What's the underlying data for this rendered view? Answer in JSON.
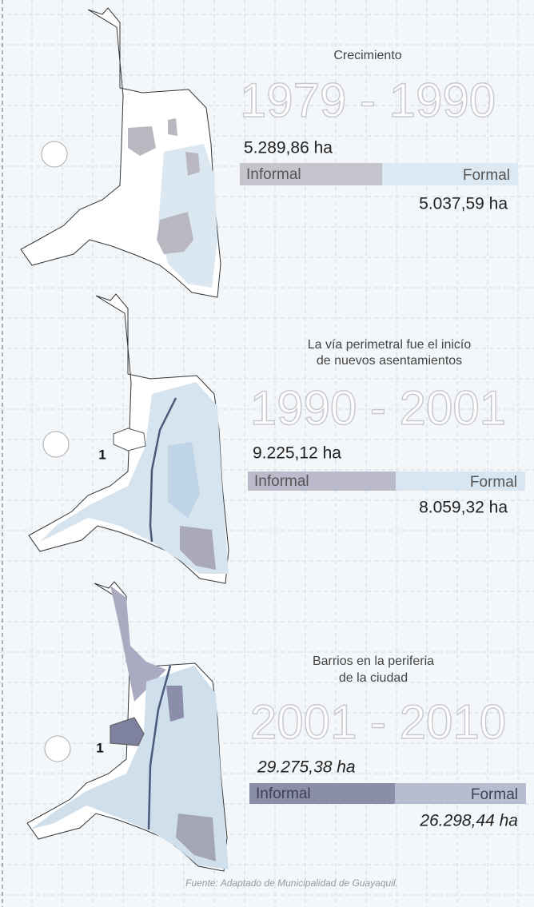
{
  "panels": [
    {
      "subtitle": [
        "Crecimiento"
      ],
      "period": "1979 - 1990",
      "informal": {
        "value": 5289.86,
        "label": "5.289,86 ha"
      },
      "formal": {
        "value": 5037.59,
        "label": "5.037,59 ha"
      },
      "informal_name": "Informal",
      "formal_name": "Formal"
    },
    {
      "subtitle": [
        "La vía perimetral fue el inicío",
        "de nuevos asentamientos"
      ],
      "period": "1990 - 2001",
      "informal": {
        "value": 9225.12,
        "label": "9.225,12 ha"
      },
      "formal": {
        "value": 8059.32,
        "label": "8.059,32 ha"
      },
      "informal_name": "Informal",
      "formal_name": "Formal",
      "map_label": "1"
    },
    {
      "subtitle": [
        "Barrios en la periferia",
        "de la ciudad"
      ],
      "period": "2001 - 2010",
      "informal": {
        "value": 29275.38,
        "label": "29.275,38 ha"
      },
      "formal": {
        "value": 26298.44,
        "label": "26.298,44 ha"
      },
      "informal_name": "Informal",
      "formal_name": "Formal",
      "map_label": "1"
    }
  ],
  "source": "Fuente: Adaptado de Municipalidad de Guayaquil."
}
